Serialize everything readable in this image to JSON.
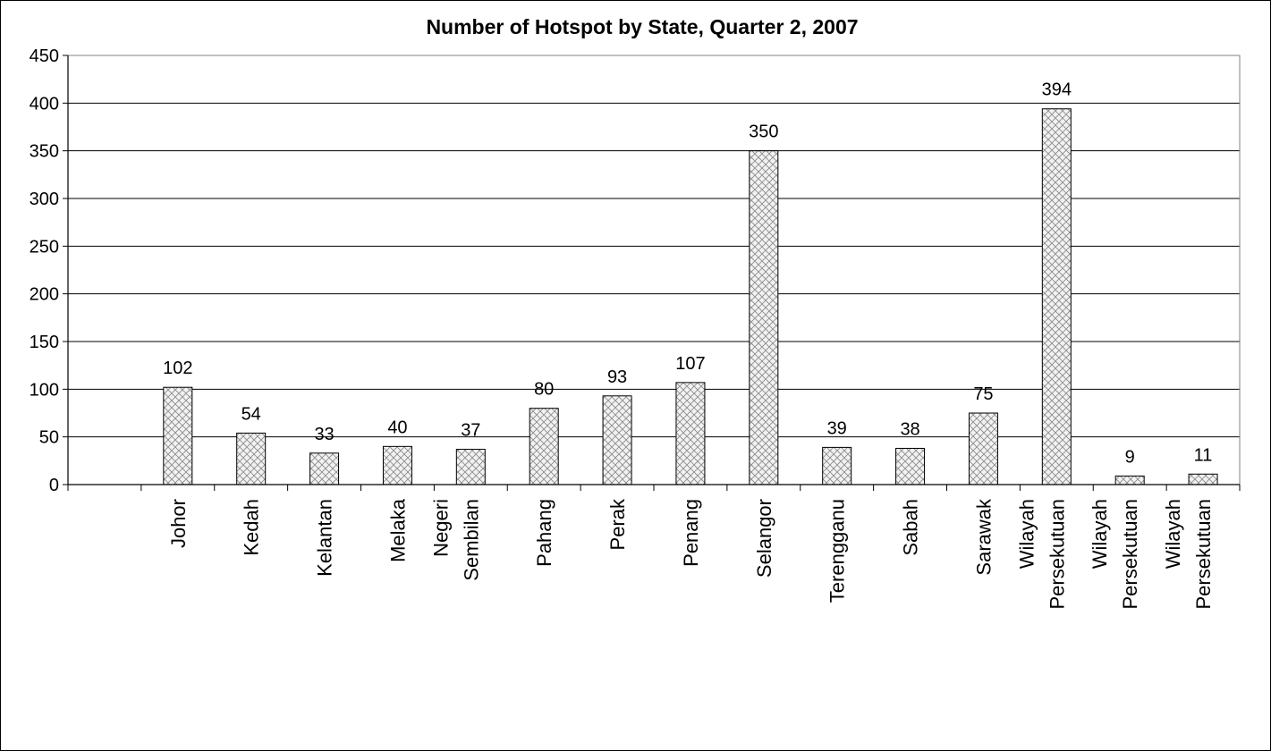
{
  "chart_data": {
    "type": "bar",
    "title": "Number of Hotspot by State, Quarter 2, 2007",
    "xlabel": "",
    "ylabel": "",
    "ylim": [
      0,
      450
    ],
    "yticks": [
      0,
      50,
      100,
      150,
      200,
      250,
      300,
      350,
      400,
      450
    ],
    "grid": true,
    "legend": "none",
    "categories": [
      "",
      "Johor",
      "Kedah",
      "Kelantan",
      "Melaka",
      "Negeri Sembilan",
      "Pahang",
      "Perak",
      "Penang",
      "Selangor",
      "Terengganu",
      "Sabah",
      "Sarawak",
      "Wilayah Persekutuan",
      "Wilayah Persekutuan",
      "Wilayah Persekutuan"
    ],
    "category_lines": [
      [],
      [
        "Johor"
      ],
      [
        "Kedah"
      ],
      [
        "Kelantan"
      ],
      [
        "Melaka"
      ],
      [
        "Negeri",
        "Sembilan"
      ],
      [
        "Pahang"
      ],
      [
        "Perak"
      ],
      [
        "Penang"
      ],
      [
        "Selangor"
      ],
      [
        "Terengganu"
      ],
      [
        "Sabah"
      ],
      [
        "Sarawak"
      ],
      [
        "Wilayah",
        "Persekutuan"
      ],
      [
        "Wilayah",
        "Persekutuan"
      ],
      [
        "Wilayah",
        "Persekutuan"
      ]
    ],
    "values": [
      null,
      102,
      54,
      33,
      40,
      37,
      80,
      93,
      107,
      350,
      39,
      38,
      75,
      394,
      9,
      11
    ],
    "data_labels": [
      "",
      "102",
      "54",
      "33",
      "40",
      "37",
      "80",
      "93",
      "107",
      "350",
      "39",
      "38",
      "75",
      "394",
      "9",
      "11"
    ],
    "colors": {
      "bar_fill": "#f2f2f2",
      "hatch": "#8c8c8c",
      "bar_stroke": "#000000",
      "grid": "#000000"
    }
  }
}
